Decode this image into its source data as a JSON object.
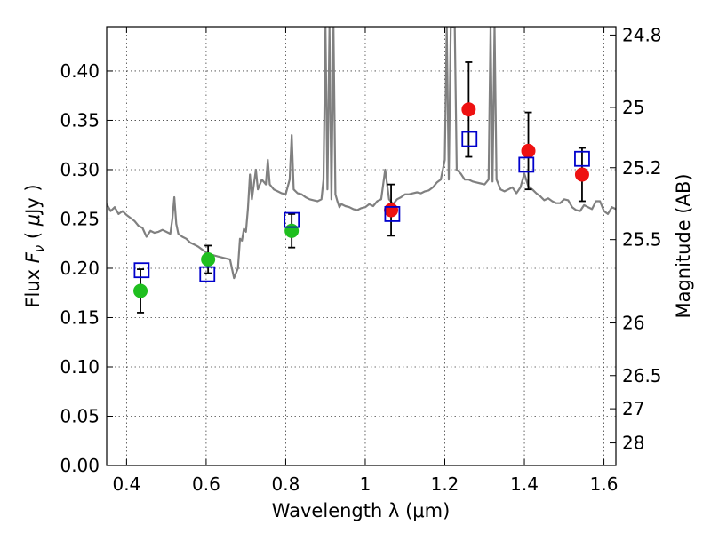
{
  "chart_data": {
    "type": "scatter",
    "xlabel": "Wavelength  λ (μm)",
    "ylabel": "Flux  F_ν  ( μJy )",
    "y2label": "Magnitude (AB)",
    "xlim": [
      0.35,
      1.63
    ],
    "ylim": [
      0.0,
      0.445
    ],
    "grid": true,
    "x_ticks": [
      "0.4",
      "0.6",
      "0.8",
      "1",
      "1.2",
      "1.4",
      "1.6"
    ],
    "x_tick_values": [
      0.4,
      0.6,
      0.8,
      1.0,
      1.2,
      1.4,
      1.6
    ],
    "y_ticks": [
      "0.00",
      "0.05",
      "0.10",
      "0.15",
      "0.20",
      "0.25",
      "0.30",
      "0.35",
      "0.40"
    ],
    "y_tick_values": [
      0.0,
      0.05,
      0.1,
      0.15,
      0.2,
      0.25,
      0.3,
      0.35,
      0.4
    ],
    "y2_ticks": [
      "24.8",
      "25",
      "25.2",
      "25.5",
      "26",
      "26.5",
      "27",
      "28"
    ],
    "y2_tick_magnitudes": [
      24.8,
      25.0,
      25.2,
      25.5,
      26.0,
      26.5,
      27.0,
      28.0
    ],
    "colors": {
      "template": "#808080",
      "observed_green": "#1fbf1f",
      "observed_red": "#ee1111",
      "model": "#0000cc",
      "errorbar": "#000000"
    },
    "series": [
      {
        "kind": "template",
        "x": [
          0.35,
          0.36,
          0.37,
          0.38,
          0.39,
          0.4,
          0.41,
          0.42,
          0.43,
          0.44,
          0.45,
          0.46,
          0.47,
          0.48,
          0.49,
          0.5,
          0.51,
          0.515,
          0.52,
          0.525,
          0.53,
          0.54,
          0.55,
          0.56,
          0.57,
          0.58,
          0.59,
          0.6,
          0.61,
          0.62,
          0.63,
          0.64,
          0.65,
          0.66,
          0.67,
          0.68,
          0.685,
          0.69,
          0.695,
          0.7,
          0.705,
          0.71,
          0.715,
          0.72,
          0.725,
          0.73,
          0.74,
          0.75,
          0.755,
          0.76,
          0.77,
          0.78,
          0.79,
          0.8,
          0.81,
          0.815,
          0.82,
          0.83,
          0.84,
          0.85,
          0.86,
          0.87,
          0.88,
          0.89,
          0.895,
          0.9,
          0.905,
          0.91,
          0.915,
          0.92,
          0.925,
          0.93,
          0.935,
          0.94,
          0.95,
          0.96,
          0.97,
          0.98,
          0.99,
          1.0,
          1.01,
          1.02,
          1.03,
          1.04,
          1.05,
          1.06,
          1.07,
          1.08,
          1.09,
          1.1,
          1.11,
          1.12,
          1.13,
          1.14,
          1.15,
          1.16,
          1.17,
          1.18,
          1.19,
          1.2,
          1.205,
          1.21,
          1.215,
          1.22,
          1.225,
          1.23,
          1.24,
          1.25,
          1.26,
          1.27,
          1.28,
          1.29,
          1.3,
          1.31,
          1.315,
          1.32,
          1.325,
          1.33,
          1.34,
          1.35,
          1.36,
          1.37,
          1.38,
          1.39,
          1.4,
          1.41,
          1.42,
          1.43,
          1.44,
          1.45,
          1.46,
          1.47,
          1.48,
          1.49,
          1.5,
          1.51,
          1.52,
          1.53,
          1.54,
          1.55,
          1.56,
          1.57,
          1.58,
          1.59,
          1.6,
          1.61,
          1.62,
          1.63
        ],
        "y": [
          0.265,
          0.258,
          0.262,
          0.255,
          0.258,
          0.254,
          0.251,
          0.248,
          0.243,
          0.241,
          0.232,
          0.238,
          0.236,
          0.237,
          0.239,
          0.237,
          0.235,
          0.25,
          0.272,
          0.245,
          0.235,
          0.232,
          0.23,
          0.226,
          0.224,
          0.222,
          0.219,
          0.216,
          0.214,
          0.213,
          0.212,
          0.211,
          0.21,
          0.209,
          0.19,
          0.2,
          0.23,
          0.228,
          0.24,
          0.237,
          0.26,
          0.295,
          0.27,
          0.285,
          0.3,
          0.28,
          0.29,
          0.285,
          0.31,
          0.285,
          0.28,
          0.278,
          0.276,
          0.275,
          0.29,
          0.335,
          0.28,
          0.276,
          0.275,
          0.272,
          0.27,
          0.269,
          0.268,
          0.27,
          0.29,
          0.445,
          0.28,
          0.445,
          0.27,
          0.445,
          0.275,
          0.268,
          0.262,
          0.265,
          0.263,
          0.262,
          0.26,
          0.259,
          0.261,
          0.262,
          0.265,
          0.263,
          0.268,
          0.27,
          0.3,
          0.27,
          0.265,
          0.27,
          0.272,
          0.275,
          0.275,
          0.276,
          0.277,
          0.276,
          0.278,
          0.279,
          0.282,
          0.287,
          0.29,
          0.31,
          0.445,
          0.29,
          0.445,
          0.445,
          0.445,
          0.3,
          0.296,
          0.29,
          0.29,
          0.288,
          0.287,
          0.286,
          0.285,
          0.29,
          0.445,
          0.288,
          0.445,
          0.29,
          0.28,
          0.278,
          0.28,
          0.282,
          0.276,
          0.282,
          0.296,
          0.283,
          0.28,
          0.276,
          0.273,
          0.269,
          0.271,
          0.268,
          0.266,
          0.266,
          0.27,
          0.269,
          0.262,
          0.259,
          0.258,
          0.264,
          0.262,
          0.26,
          0.268,
          0.268,
          0.258,
          0.255,
          0.262,
          0.26
        ]
      },
      {
        "kind": "observed",
        "name": "",
        "points": [
          {
            "x": 0.435,
            "y": 0.177,
            "yerr": 0.022,
            "color": "green"
          },
          {
            "x": 0.605,
            "y": 0.209,
            "yerr": 0.014,
            "color": "green"
          },
          {
            "x": 0.815,
            "y": 0.238,
            "yerr": 0.017,
            "color": "green"
          },
          {
            "x": 1.065,
            "y": 0.259,
            "yerr": 0.026,
            "color": "red"
          },
          {
            "x": 1.26,
            "y": 0.361,
            "yerr": 0.048,
            "color": "red"
          },
          {
            "x": 1.41,
            "y": 0.319,
            "yerr": 0.039,
            "color": "red"
          },
          {
            "x": 1.545,
            "y": 0.295,
            "yerr": 0.027,
            "color": "red"
          }
        ]
      },
      {
        "kind": "model",
        "name": "",
        "points": [
          {
            "x": 0.438,
            "y": 0.198
          },
          {
            "x": 0.603,
            "y": 0.194
          },
          {
            "x": 0.815,
            "y": 0.249
          },
          {
            "x": 1.068,
            "y": 0.255
          },
          {
            "x": 1.262,
            "y": 0.331
          },
          {
            "x": 1.405,
            "y": 0.305
          },
          {
            "x": 1.545,
            "y": 0.311
          }
        ]
      }
    ]
  }
}
